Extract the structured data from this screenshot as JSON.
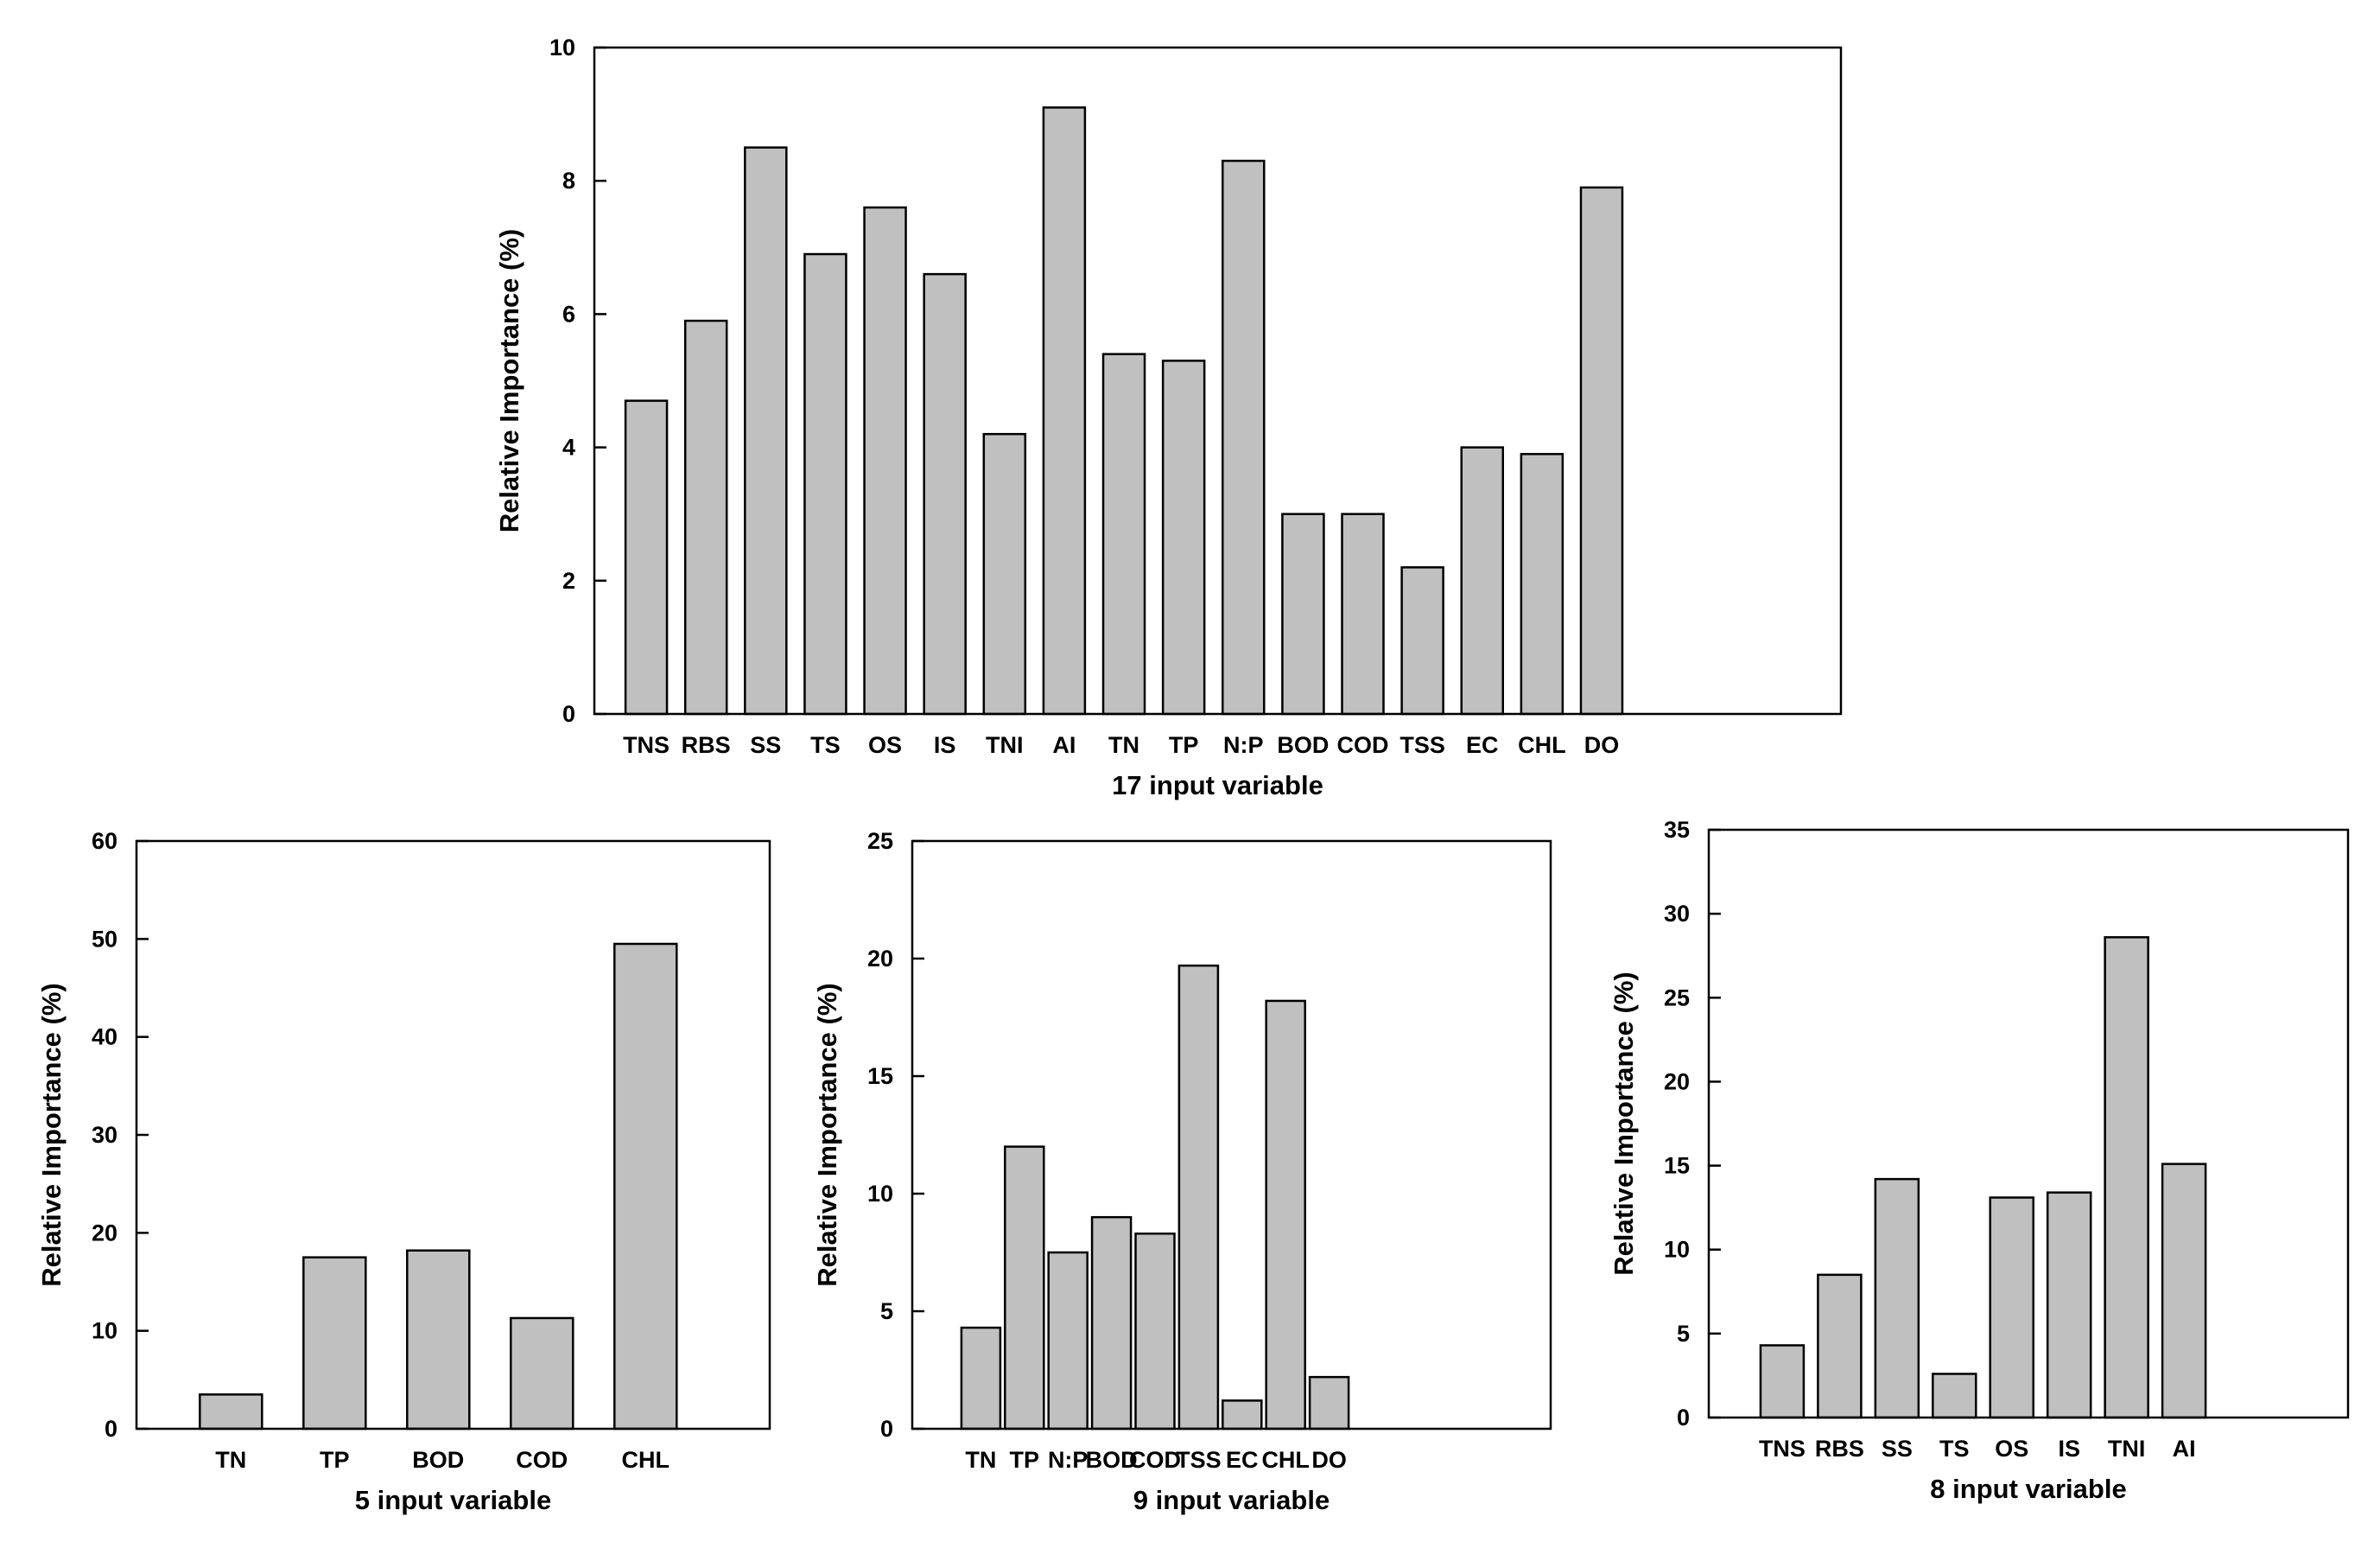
{
  "chart_data": [
    {
      "type": "bar",
      "title": "",
      "xlabel": "17 input variable",
      "ylabel": "Relative Importance (%)",
      "ylim": [
        0,
        10
      ],
      "yticks": [
        0,
        2,
        4,
        6,
        8,
        10
      ],
      "categories": [
        "TNS",
        "RBS",
        "SS",
        "TS",
        "OS",
        "IS",
        "TNI",
        "AI",
        "TN",
        "TP",
        "N:P",
        "BOD",
        "COD",
        "TSS",
        "EC",
        "CHL",
        "DO"
      ],
      "values": [
        4.7,
        5.9,
        8.5,
        6.9,
        7.6,
        6.6,
        4.2,
        9.1,
        5.4,
        5.3,
        8.3,
        3.0,
        3.0,
        2.2,
        4.0,
        3.9,
        7.9
      ]
    },
    {
      "type": "bar",
      "title": "",
      "xlabel": "5 input variable",
      "ylabel": "Relative Importance (%)",
      "ylim": [
        0,
        60
      ],
      "yticks": [
        0,
        10,
        20,
        30,
        40,
        50,
        60
      ],
      "categories": [
        "TN",
        "TP",
        "BOD",
        "COD",
        "CHL"
      ],
      "values": [
        3.5,
        17.5,
        18.2,
        11.3,
        49.5
      ]
    },
    {
      "type": "bar",
      "title": "",
      "xlabel": "9 input variable",
      "ylabel": "Relative Importance (%)",
      "ylim": [
        0,
        25
      ],
      "yticks": [
        0,
        5,
        10,
        15,
        20,
        25
      ],
      "categories": [
        "TN",
        "TP",
        "N:P",
        "BOD",
        "COD",
        "TSS",
        "EC",
        "CHL",
        "DO"
      ],
      "values": [
        4.3,
        12.0,
        7.5,
        9.0,
        8.3,
        19.7,
        1.2,
        18.2,
        2.2
      ]
    },
    {
      "type": "bar",
      "title": "",
      "xlabel": "8 input variable",
      "ylabel": "Relative Importance (%)",
      "ylim": [
        0,
        35
      ],
      "yticks": [
        0,
        5,
        10,
        15,
        20,
        25,
        30,
        35
      ],
      "categories": [
        "TNS",
        "RBS",
        "SS",
        "TS",
        "OS",
        "IS",
        "TNI",
        "AI"
      ],
      "values": [
        4.3,
        8.5,
        14.2,
        2.6,
        13.1,
        13.4,
        28.6,
        15.1
      ]
    }
  ]
}
